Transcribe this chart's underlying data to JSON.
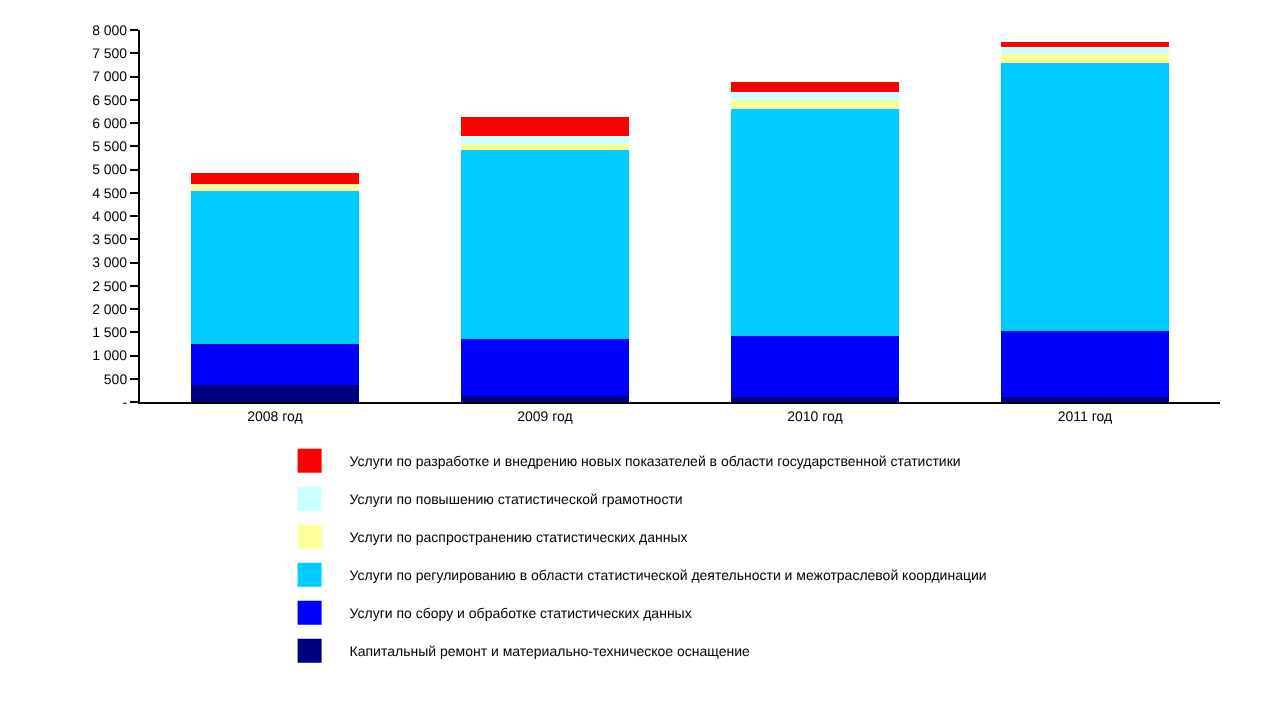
{
  "chart_data": {
    "type": "bar",
    "stacked": true,
    "categories": [
      "2008 год",
      "2009 год",
      "2010 год",
      "2011 год"
    ],
    "series": [
      {
        "name": "Капитальный ремонт и материально-техническое оснащение",
        "color": "#000080",
        "values": [
          360,
          130,
          100,
          100
        ]
      },
      {
        "name": "Услуги по сбору и обработке статистических данных",
        "color": "#0000ff",
        "values": [
          890,
          1220,
          1310,
          1420
        ]
      },
      {
        "name": "Услуги по регулированию в области статистической деятельности и межотраслевой координации",
        "color": "#00ccff",
        "values": [
          3280,
          4070,
          4890,
          5760
        ]
      },
      {
        "name": "Услуги по распространению статистических данных",
        "color": "#ffff99",
        "values": [
          160,
          130,
          200,
          200
        ]
      },
      {
        "name": "Услуги по повышению статистической грамотности",
        "color": "#ccffff",
        "values": [
          0,
          160,
          160,
          160
        ]
      },
      {
        "name": "Услуги по разработке и внедрению новых показателей в области государственной статистики",
        "color": "#ff0000",
        "values": [
          230,
          430,
          220,
          100
        ]
      }
    ],
    "ylim": [
      0,
      8000
    ],
    "yticks": [
      {
        "value": 0,
        "label": "-"
      },
      {
        "value": 500,
        "label": "500"
      },
      {
        "value": 1000,
        "label": "1 000"
      },
      {
        "value": 1500,
        "label": "1 500"
      },
      {
        "value": 2000,
        "label": "2 000"
      },
      {
        "value": 2500,
        "label": "2 500"
      },
      {
        "value": 3000,
        "label": "3 000"
      },
      {
        "value": 3500,
        "label": "3 500"
      },
      {
        "value": 4000,
        "label": "4 000"
      },
      {
        "value": 4500,
        "label": "4 500"
      },
      {
        "value": 5000,
        "label": "5 000"
      },
      {
        "value": 5500,
        "label": "5 500"
      },
      {
        "value": 6000,
        "label": "6 000"
      },
      {
        "value": 6500,
        "label": "6 500"
      },
      {
        "value": 7000,
        "label": "7 000"
      },
      {
        "value": 7500,
        "label": "7 500"
      },
      {
        "value": 8000,
        "label": "8 000"
      }
    ],
    "legend": "bottom"
  }
}
